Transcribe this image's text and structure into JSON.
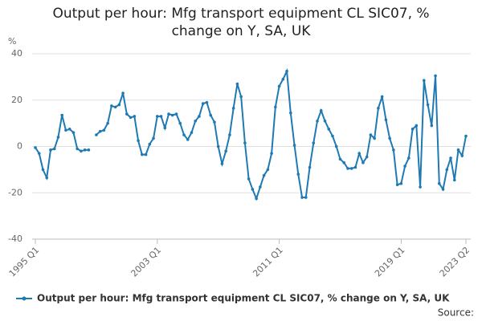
{
  "chart_data": {
    "type": "line",
    "title": "Output per hour: Mfg transport equipment CL SIC07, % change on Y, SA, UK",
    "y_label": "%",
    "source": "Source:",
    "categories": [
      "1995 Q1",
      null,
      null,
      null,
      null,
      null,
      null,
      null,
      null,
      null,
      null,
      null,
      null,
      null,
      null,
      null,
      null,
      null,
      null,
      null,
      null,
      null,
      null,
      null,
      null,
      null,
      null,
      null,
      null,
      null,
      null,
      null,
      "2003 Q1",
      null,
      null,
      null,
      null,
      null,
      null,
      null,
      null,
      null,
      null,
      null,
      null,
      null,
      null,
      null,
      null,
      null,
      null,
      null,
      null,
      null,
      null,
      null,
      null,
      null,
      null,
      null,
      null,
      null,
      null,
      null,
      "2011 Q1",
      null,
      null,
      null,
      null,
      null,
      null,
      null,
      null,
      null,
      null,
      null,
      null,
      null,
      null,
      null,
      null,
      null,
      null,
      null,
      null,
      null,
      null,
      null,
      null,
      null,
      null,
      null,
      null,
      null,
      null,
      null,
      "2019 Q1",
      null,
      null,
      null,
      null,
      null,
      null,
      null,
      null,
      null,
      null,
      null,
      null,
      null,
      null,
      null,
      null,
      "2023 Q2"
    ],
    "series": [
      {
        "name": "Output per hour: Mfg transport equipment CL SIC07, % change on Y, SA, UK",
        "color": "#1f7ab3",
        "values": [
          -0.5,
          -3,
          -10,
          -13.5,
          -1.5,
          -1,
          4,
          13.5,
          7,
          7.5,
          6,
          -1,
          -2,
          -1.5,
          -1.5,
          null,
          5,
          6.5,
          7,
          10,
          17.5,
          17,
          18,
          23,
          14,
          12.5,
          13,
          2.5,
          -3.5,
          -3.5,
          1,
          3.5,
          13,
          13,
          8,
          14,
          13.5,
          14,
          10,
          5,
          3,
          6,
          11,
          13,
          18.5,
          19,
          13.5,
          10.5,
          0,
          -7.5,
          -2,
          5,
          16.5,
          27,
          21.5,
          1.5,
          -14,
          -18.5,
          -22.5,
          -17.5,
          -12.5,
          -10,
          -3,
          17,
          26,
          29,
          32.5,
          14.5,
          0.5,
          -12,
          -22,
          -22,
          -9,
          1.5,
          11,
          15.5,
          11,
          7.5,
          4.5,
          0,
          -5.5,
          -7,
          -9.5,
          -9.5,
          -9,
          -3,
          -7,
          -4.5,
          5,
          3.5,
          16.5,
          21.5,
          11.5,
          3.5,
          -1.5,
          -16.5,
          -16,
          -8.5,
          -5,
          7.5,
          9,
          -17.5,
          28.5,
          18,
          9,
          30.5,
          -16,
          -18.5,
          -10,
          -5,
          -14.5,
          -1.5,
          -4,
          4.5
        ]
      }
    ],
    "ylim": [
      -40,
      40
    ],
    "yticks": [
      -40,
      -20,
      0,
      20,
      40
    ],
    "grid": true
  }
}
